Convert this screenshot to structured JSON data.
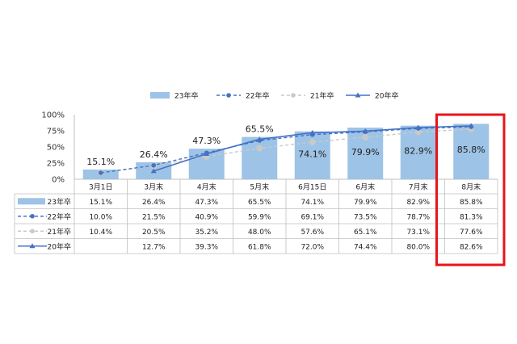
{
  "chart_data": {
    "type": "bar",
    "categories": [
      "3月1日",
      "3月末",
      "4月末",
      "5月末",
      "6月15日",
      "6月末",
      "7月末",
      "8月末"
    ],
    "ylim": [
      0,
      100
    ],
    "yticks": [
      "0%",
      "25%",
      "50%",
      "75%",
      "100%"
    ],
    "grid": false,
    "legend_position": "top",
    "series": [
      {
        "name": "23年卒",
        "type": "bar",
        "color": "#9dc3e6",
        "values": [
          15.1,
          26.4,
          47.3,
          65.5,
          74.1,
          79.9,
          82.9,
          85.8
        ],
        "labels": [
          "15.1%",
          "26.4%",
          "47.3%",
          "65.5%",
          "74.1%",
          "79.9%",
          "82.9%",
          "85.8%"
        ]
      },
      {
        "name": "22年卒",
        "type": "line",
        "style": "dashed",
        "marker": "circle",
        "color": "#4472c4",
        "values": [
          10.0,
          21.5,
          40.9,
          59.9,
          69.1,
          73.5,
          78.7,
          81.3
        ],
        "labels": [
          "10.0%",
          "21.5%",
          "40.9%",
          "59.9%",
          "69.1%",
          "73.5%",
          "78.7%",
          "81.3%"
        ]
      },
      {
        "name": "21年卒",
        "type": "line",
        "style": "dashed",
        "marker": "circle",
        "color": "#c9c9c9",
        "values": [
          10.4,
          20.5,
          35.2,
          48.0,
          57.6,
          65.1,
          73.1,
          77.6
        ],
        "labels": [
          "10.4%",
          "20.5%",
          "35.2%",
          "48.0%",
          "57.6%",
          "65.1%",
          "73.1%",
          "77.6%"
        ]
      },
      {
        "name": "20年卒",
        "type": "line",
        "style": "solid",
        "marker": "triangle",
        "color": "#4472c4",
        "values": [
          null,
          12.7,
          39.3,
          61.8,
          72.0,
          74.4,
          80.0,
          82.6
        ],
        "labels": [
          "",
          "12.7%",
          "39.3%",
          "61.8%",
          "72.0%",
          "74.4%",
          "80.0%",
          "82.6%"
        ]
      }
    ],
    "highlight": {
      "category": "8月末",
      "color": "#e8141a"
    }
  }
}
